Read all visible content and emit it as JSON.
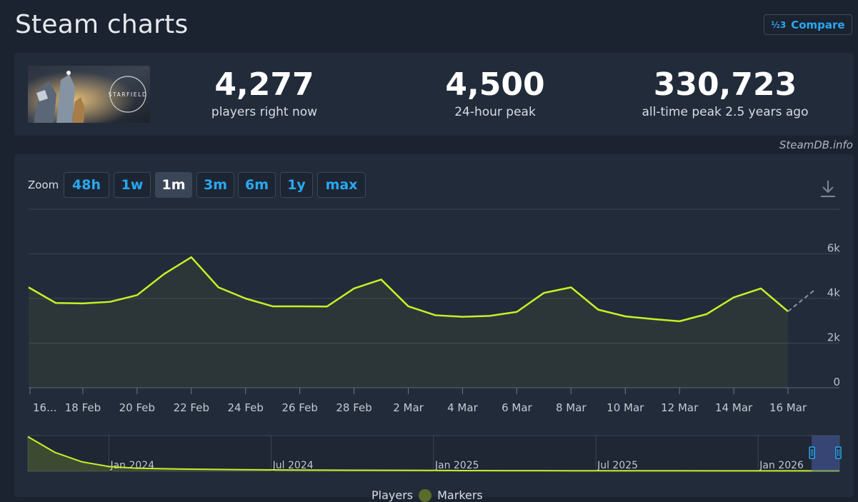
{
  "page_title": "Steam charts",
  "compare_button": {
    "icon": "1/2/3 compare-icon",
    "icon_glyph": "½3",
    "label": "Compare"
  },
  "game": {
    "name": "STARFIELD"
  },
  "stats": [
    {
      "value": "4,277",
      "label": "players right now"
    },
    {
      "value": "4,500",
      "label": "24-hour peak"
    },
    {
      "value": "330,723",
      "label": "all-time peak 2.5 years ago"
    }
  ],
  "watermark": "SteamDB.info",
  "zoom": {
    "label": "Zoom",
    "options": [
      "48h",
      "1w",
      "1m",
      "3m",
      "6m",
      "1y",
      "max"
    ],
    "active": "1m"
  },
  "colors": {
    "series_line": "#c6f126",
    "accent": "#29a8f2",
    "panel": "#222b3a"
  },
  "legend": {
    "players": "Players",
    "markers": "Markers"
  },
  "chart_data": {
    "type": "line",
    "x": [
      "16 Feb",
      "17 Feb",
      "18 Feb",
      "19 Feb",
      "20 Feb",
      "21 Feb",
      "22 Feb",
      "23 Feb",
      "24 Feb",
      "25 Feb",
      "26 Feb",
      "27 Feb",
      "28 Feb",
      "1 Mar",
      "2 Mar",
      "3 Mar",
      "4 Mar",
      "5 Mar",
      "6 Mar",
      "7 Mar",
      "8 Mar",
      "9 Mar",
      "10 Mar",
      "11 Mar",
      "12 Mar",
      "13 Mar",
      "14 Mar",
      "15 Mar",
      "16 Mar",
      "17 Mar"
    ],
    "series": [
      {
        "name": "Players",
        "values": [
          4500,
          3800,
          3780,
          3850,
          4150,
          5100,
          5850,
          4500,
          4000,
          3650,
          3650,
          3640,
          4450,
          4850,
          3650,
          3250,
          3180,
          3220,
          3400,
          4250,
          4500,
          3500,
          3200,
          3080,
          2980,
          3300,
          4050,
          4450,
          3420,
          4400
        ]
      }
    ],
    "projected_from_index": 28,
    "x_tick_labels": [
      "16...",
      "18 Feb",
      "20 Feb",
      "22 Feb",
      "24 Feb",
      "26 Feb",
      "28 Feb",
      "2 Mar",
      "4 Mar",
      "6 Mar",
      "8 Mar",
      "10 Mar",
      "12 Mar",
      "14 Mar",
      "16 Mar"
    ],
    "x_tick_indices": [
      0,
      2,
      4,
      6,
      8,
      10,
      12,
      14,
      16,
      18,
      20,
      22,
      24,
      26,
      28
    ],
    "y_ticks": [
      0,
      2000,
      4000,
      6000
    ],
    "y_tick_labels": [
      "0",
      "2k",
      "4k",
      "6k"
    ],
    "ylim": [
      0,
      8000
    ],
    "grid": true,
    "navigator": {
      "labels": [
        "Jan 2024",
        "Jul 2024",
        "Jan 2025",
        "Jul 2025",
        "Jan 2026"
      ],
      "x_range": [
        0,
        30
      ],
      "label_positions": [
        4,
        10,
        16,
        22,
        28
      ],
      "values": [
        [
          0,
          330000
        ],
        [
          1,
          180000
        ],
        [
          2,
          90000
        ],
        [
          3,
          45000
        ],
        [
          4,
          30000
        ],
        [
          6,
          20000
        ],
        [
          8,
          15000
        ],
        [
          10,
          12000
        ],
        [
          12,
          10000
        ],
        [
          14,
          9000
        ],
        [
          16,
          7000
        ],
        [
          18,
          6000
        ],
        [
          20,
          5500
        ],
        [
          22,
          5000
        ],
        [
          24,
          4800
        ],
        [
          26,
          4600
        ],
        [
          28,
          4400
        ],
        [
          30,
          4300
        ]
      ],
      "ylim": [
        0,
        340000
      ],
      "selection": [
        29,
        30
      ]
    }
  }
}
